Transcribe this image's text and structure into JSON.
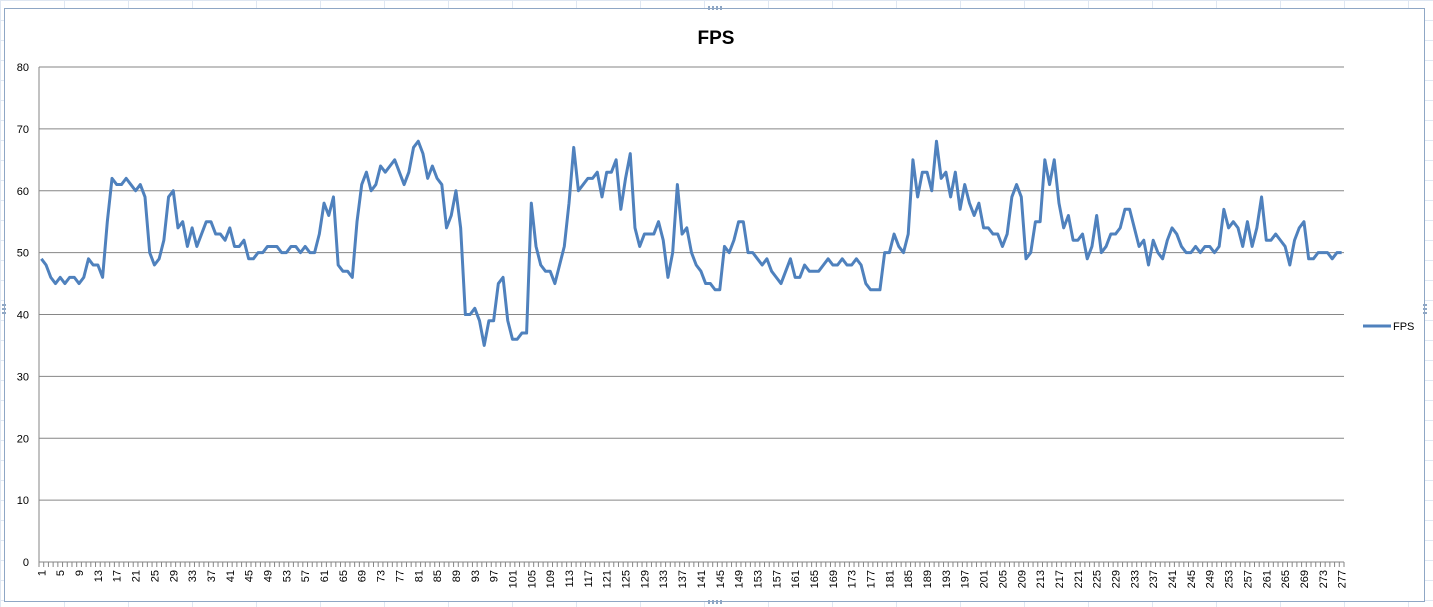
{
  "chart_data": {
    "type": "line",
    "title": "FPS",
    "xlabel": "",
    "ylabel": "",
    "ylim": [
      0,
      80
    ],
    "yticks": [
      0,
      10,
      20,
      30,
      40,
      50,
      60,
      70,
      80
    ],
    "grid": true,
    "legend_position": "right",
    "series": [
      {
        "name": "FPS",
        "color": "#4f81bd",
        "values": [
          49,
          48,
          46,
          45,
          46,
          45,
          46,
          46,
          45,
          46,
          49,
          48,
          48,
          46,
          55,
          62,
          61,
          61,
          62,
          61,
          60,
          61,
          59,
          50,
          48,
          49,
          52,
          59,
          60,
          54,
          55,
          51,
          54,
          51,
          53,
          55,
          55,
          53,
          53,
          52,
          54,
          51,
          51,
          52,
          49,
          49,
          50,
          50,
          51,
          51,
          51,
          50,
          50,
          51,
          51,
          50,
          51,
          50,
          50,
          53,
          58,
          56,
          59,
          48,
          47,
          47,
          46,
          55,
          61,
          63,
          60,
          61,
          64,
          63,
          64,
          65,
          63,
          61,
          63,
          67,
          68,
          66,
          62,
          64,
          62,
          61,
          54,
          56,
          60,
          54,
          40,
          40,
          41,
          39,
          35,
          39,
          39,
          45,
          46,
          39,
          36,
          36,
          37,
          37,
          58,
          51,
          48,
          47,
          47,
          45,
          48,
          51,
          58,
          67,
          60,
          61,
          62,
          62,
          63,
          59,
          63,
          63,
          65,
          57,
          62,
          66,
          54,
          51,
          53,
          53,
          53,
          55,
          52,
          46,
          50,
          61,
          53,
          54,
          50,
          48,
          47,
          45,
          45,
          44,
          44,
          51,
          50,
          52,
          55,
          55,
          50,
          50,
          49,
          48,
          49,
          47,
          46,
          45,
          47,
          49,
          46,
          46,
          48,
          47,
          47,
          47,
          48,
          49,
          48,
          48,
          49,
          48,
          48,
          49,
          48,
          45,
          44,
          44,
          44,
          50,
          50,
          53,
          51,
          50,
          53,
          65,
          59,
          63,
          63,
          60,
          68,
          62,
          63,
          59,
          63,
          57,
          61,
          58,
          56,
          58,
          54,
          54,
          53,
          53,
          51,
          53,
          59,
          61,
          59,
          49,
          50,
          55,
          55,
          65,
          61,
          65,
          58,
          54,
          56,
          52,
          52,
          53,
          49,
          51,
          56,
          50,
          51,
          53,
          53,
          54,
          57,
          57,
          54,
          51,
          52,
          48,
          52,
          50,
          49,
          52,
          54,
          53,
          51,
          50,
          50,
          51,
          50,
          51,
          51,
          50,
          51,
          57,
          54,
          55,
          54,
          51,
          55,
          51,
          54,
          59,
          52,
          52,
          53,
          52,
          51,
          48,
          52,
          54,
          55,
          49,
          49,
          50,
          50,
          50,
          49,
          50,
          50
        ]
      }
    ],
    "x_tick_labels": [
      "1",
      "5",
      "9",
      "13",
      "17",
      "21",
      "25",
      "29",
      "33",
      "37",
      "41",
      "45",
      "49",
      "53",
      "57",
      "61",
      "65",
      "69",
      "73",
      "77",
      "81",
      "85",
      "89",
      "93",
      "97",
      "101",
      "105",
      "109",
      "113",
      "117",
      "121",
      "125",
      "129",
      "133",
      "137",
      "141",
      "145",
      "149",
      "153",
      "157",
      "161",
      "165",
      "169",
      "173",
      "177",
      "181",
      "185",
      "189",
      "193",
      "197",
      "201",
      "205",
      "209",
      "213",
      "217",
      "221",
      "225",
      "229",
      "233",
      "237",
      "241",
      "245",
      "249",
      "253",
      "257",
      "261",
      "265",
      "269",
      "273",
      "277"
    ]
  }
}
